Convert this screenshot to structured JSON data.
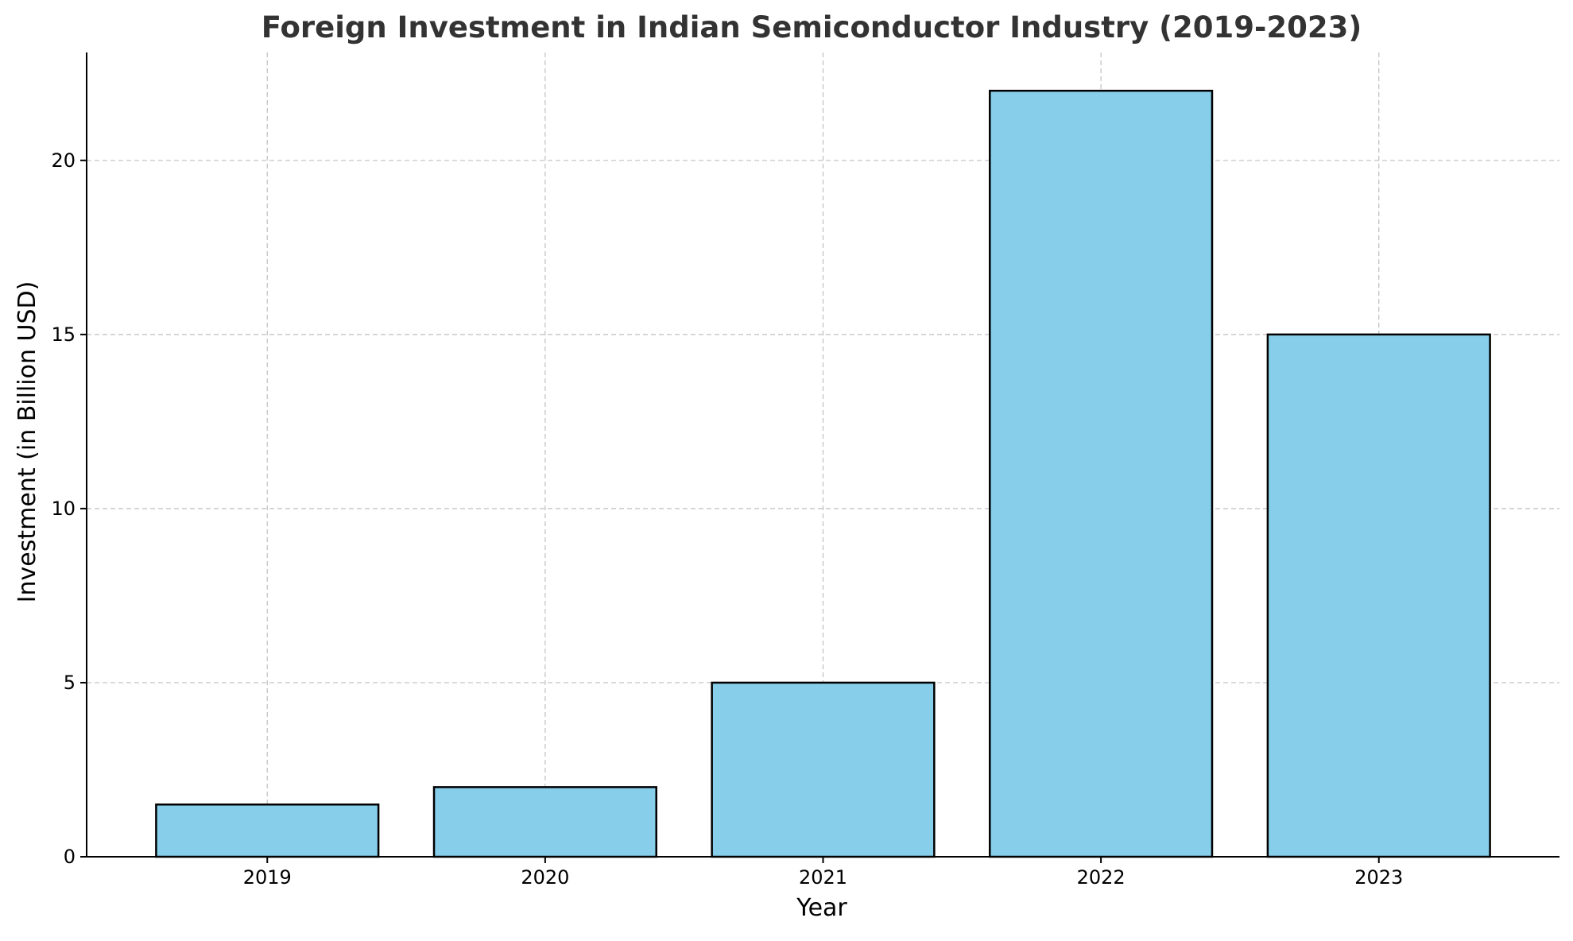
{
  "chart_data": {
    "type": "bar",
    "title": "Foreign Investment in Indian Semiconductor Industry (2019-2023)",
    "xlabel": "Year",
    "ylabel": "Investment (in Billion USD)",
    "categories": [
      "2019",
      "2020",
      "2021",
      "2022",
      "2023"
    ],
    "values": [
      1.5,
      2,
      5,
      22,
      15
    ],
    "ylim": [
      0,
      23.1
    ],
    "yticks": [
      0,
      5,
      10,
      15,
      20
    ],
    "ytick_labels": [
      "0",
      "5",
      "10",
      "15",
      "20"
    ],
    "grid": true,
    "colors": {
      "bar_fill": "#87ceeb",
      "bar_edge": "#000000",
      "grid": "#b0b0b0",
      "axis": "#000000",
      "text": "#333333"
    }
  }
}
